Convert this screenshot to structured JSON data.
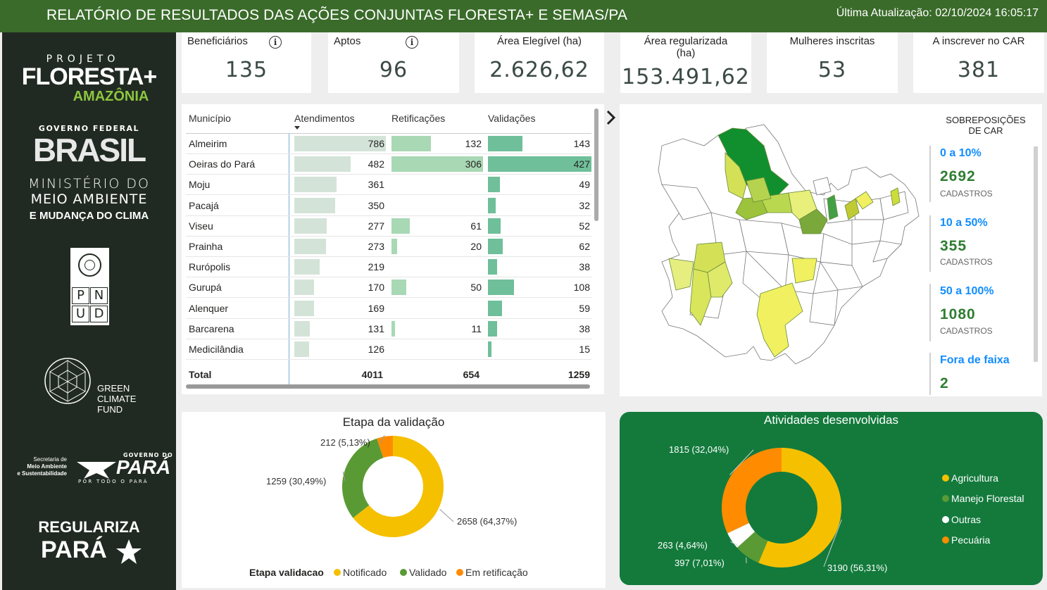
{
  "header": {
    "title": "RELATÓRIO DE RESULTADOS DAS AÇÕES CONJUNTAS FLORESTA+ E SEMAS/PA",
    "updated": "Última Atualização: 02/10/2024 16:05:17"
  },
  "sidebar": {
    "projeto": "PROJETO",
    "floresta": "FLORESTA+",
    "amazonia": "AMAZÔNIA",
    "governo_federal": "GOVERNO FEDERAL",
    "brasil": "BRASIL",
    "ministerio": "MINISTÉRIO DO",
    "meio_ambiente": "MEIO AMBIENTE",
    "mudanca": "E MUDANÇA DO CLIMA",
    "pnud": [
      "P",
      "N",
      "U",
      "D"
    ],
    "gcf": [
      "GREEN",
      "CLIMATE",
      "FUND"
    ],
    "semas": [
      "Secretaria de",
      "Meio Ambiente",
      "e Sustentabilidade"
    ],
    "gov_para_top": "GOVERNO DO",
    "gov_para": "PARÁ",
    "gov_para_sub": "POR TODO O PARÁ",
    "regulariza": "REGULARIZA",
    "regulariza_para": "PARÁ"
  },
  "kpis": [
    {
      "label": "Beneficiários",
      "value": "135",
      "info": "i"
    },
    {
      "label": "Aptos",
      "value": "96",
      "info": "i"
    },
    {
      "label": "Área Elegível (ha)",
      "value": "2.626,62"
    },
    {
      "label": "Área regularizada",
      "label2": "(ha)",
      "value": "153.491,62"
    },
    {
      "label": "Mulheres inscritas",
      "value": "53"
    },
    {
      "label": "A inscrever no CAR",
      "value": "381"
    }
  ],
  "table": {
    "headers": [
      "Município",
      "Atendimentos",
      "Retificações",
      "Validações"
    ],
    "max": {
      "atend": 786,
      "retif": 306,
      "valid": 427
    },
    "rows": [
      {
        "municipio": "Almeirim",
        "atend": "786",
        "retif": "132",
        "valid": "143"
      },
      {
        "municipio": "Oeiras do Pará",
        "atend": "482",
        "retif": "306",
        "valid": "427"
      },
      {
        "municipio": "Moju",
        "atend": "361",
        "retif": "",
        "valid": "49"
      },
      {
        "municipio": "Pacajá",
        "atend": "350",
        "retif": "",
        "valid": "32"
      },
      {
        "municipio": "Viseu",
        "atend": "277",
        "retif": "61",
        "valid": "52"
      },
      {
        "municipio": "Prainha",
        "atend": "273",
        "retif": "20",
        "valid": "62"
      },
      {
        "municipio": "Rurópolis",
        "atend": "219",
        "retif": "",
        "valid": "38"
      },
      {
        "municipio": "Gurupá",
        "atend": "170",
        "retif": "50",
        "valid": "108"
      },
      {
        "municipio": "Alenquer",
        "atend": "169",
        "retif": "",
        "valid": "59"
      },
      {
        "municipio": "Barcarena",
        "atend": "131",
        "retif": "11",
        "valid": "38"
      },
      {
        "municipio": "Medicilândia",
        "atend": "126",
        "retif": "",
        "valid": "15"
      }
    ],
    "total": {
      "label": "Total",
      "atend": "4011",
      "retif": "654",
      "valid": "1259"
    },
    "colors": {
      "atend": "#d3e3d8",
      "retif": "#a8d8b4",
      "valid": "#6fbf9a"
    }
  },
  "map_legend": {
    "title_line1": "SOBREPOSIÇÕES",
    "title_line2": "DE CAR",
    "items": [
      {
        "range": "0 a 10%",
        "count": "2692",
        "sub": "CADASTROS"
      },
      {
        "range": "10 a 50%",
        "count": "355",
        "sub": "CADASTROS"
      },
      {
        "range": "50 a 100%",
        "count": "1080",
        "sub": "CADASTROS"
      },
      {
        "range": "Fora de faixa",
        "count": "2",
        "sub": ""
      }
    ]
  },
  "validation_chart": {
    "title": "Etapa da validação",
    "legend_title": "Etapa validacao",
    "slices": [
      {
        "name": "Notificado",
        "value": 2658,
        "label": "2658 (64,37%)",
        "color": "#f5c000"
      },
      {
        "name": "Validado",
        "value": 1259,
        "label": "1259 (30,49%)",
        "color": "#5a9a34"
      },
      {
        "name": "Em retificação",
        "value": 212,
        "label": "212 (5,13%)",
        "color": "#ff8c00"
      }
    ]
  },
  "activities_chart": {
    "title": "Atividades desenvolvidas",
    "slices": [
      {
        "name": "Agricultura",
        "value": 3190,
        "label": "3190 (56,31%)",
        "color": "#f5c000"
      },
      {
        "name": "Manejo Florestal",
        "value": 397,
        "label": "397 (7,01%)",
        "color": "#5a9a34"
      },
      {
        "name": "Outras",
        "value": 263,
        "label": "263 (4,64%)",
        "color": "#ffffff"
      },
      {
        "name": "Pecuária",
        "value": 1815,
        "label": "1815 (32,04%)",
        "color": "#ff8c00"
      }
    ]
  }
}
